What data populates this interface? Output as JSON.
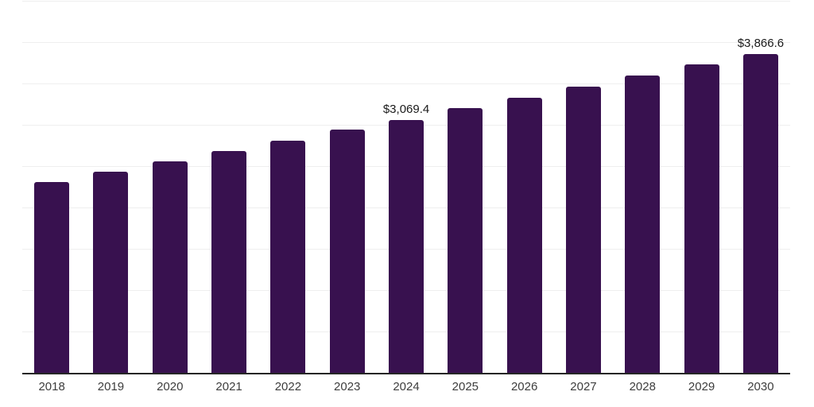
{
  "colors": {
    "background": "#ffffff",
    "bar": "#38114f",
    "gridline": "#efefef",
    "axis_line": "#262626",
    "tick_label": "#3d3d3d",
    "data_label": "#1a1a1a"
  },
  "chart_data": {
    "type": "bar",
    "title": "",
    "xlabel": "",
    "ylabel": "",
    "categories": [
      "2018",
      "2019",
      "2020",
      "2021",
      "2022",
      "2023",
      "2024",
      "2025",
      "2026",
      "2027",
      "2028",
      "2029",
      "2030"
    ],
    "values": [
      2317,
      2442,
      2567,
      2692,
      2817,
      2952,
      3069.4,
      3211,
      3336,
      3471,
      3606,
      3740,
      3866.6
    ],
    "point_labels": [
      "",
      "",
      "",
      "",
      "",
      "",
      "$3,069.4",
      "",
      "",
      "",
      "",
      "",
      "$3,866.6"
    ],
    "ylim": [
      0,
      4500
    ],
    "grid_interval": 500,
    "grid": "horizontal",
    "legend_position": "none",
    "y_tick_labels_shown": false
  }
}
